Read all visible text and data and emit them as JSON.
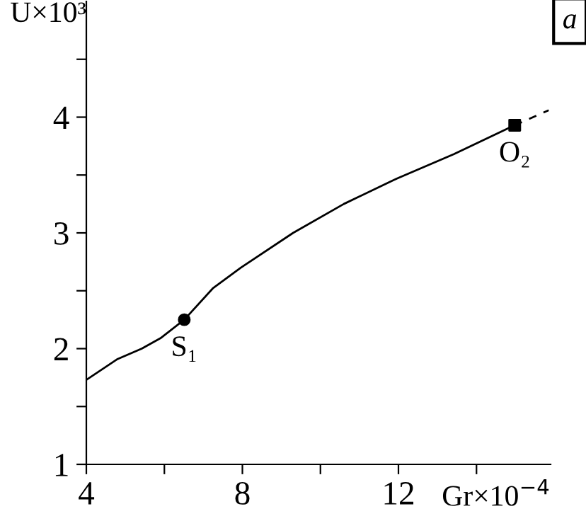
{
  "chart_data": {
    "type": "line",
    "xlabel": "Gr×10$^{−4}$",
    "ylabel": "U×10³",
    "xlim": [
      4,
      15.9
    ],
    "ylim": [
      1,
      5
    ],
    "xticks": [
      4,
      {
        "value": 6,
        "label": null
      },
      8,
      {
        "value": 10,
        "label": null
      },
      12,
      {
        "value": 14,
        "label": null
      }
    ],
    "yticks": [
      1,
      {
        "value": 1.5,
        "label": null
      },
      2,
      {
        "value": 2.5,
        "label": null
      },
      3,
      {
        "value": 3.5,
        "label": null
      },
      4,
      {
        "value": 4.5,
        "label": null
      }
    ],
    "grid": false,
    "legend": false,
    "series": [
      {
        "color": "#000000",
        "line_style": "solid",
        "x": [
          4,
          4.8,
          5.42,
          5.9,
          6.51,
          7.24,
          7.96,
          9.3,
          10.6,
          11.96,
          13.42,
          14.98
        ],
        "values": [
          1.73,
          1.91,
          2.0,
          2.09,
          2.25,
          2.52,
          2.7,
          3.0,
          3.25,
          3.47,
          3.68,
          3.93
        ]
      },
      {
        "color": "#000000",
        "line_style": "dashed",
        "x": [
          14.98,
          15.85
        ],
        "values": [
          3.93,
          4.06
        ]
      },
      {
        "type": "scatter",
        "color": "#000000",
        "marker": "circle",
        "x": [
          6.51
        ],
        "values": [
          2.25
        ]
      },
      {
        "type": "scatter",
        "color": "#000000",
        "marker": "square",
        "x": [
          14.98
        ],
        "values": [
          3.93
        ]
      }
    ],
    "annotations": [
      {
        "text": "S₁",
        "x": 6.51,
        "y": 2.25
      },
      {
        "text": "O₂",
        "x": 14.98,
        "y": 3.93
      },
      "a"
    ]
  }
}
